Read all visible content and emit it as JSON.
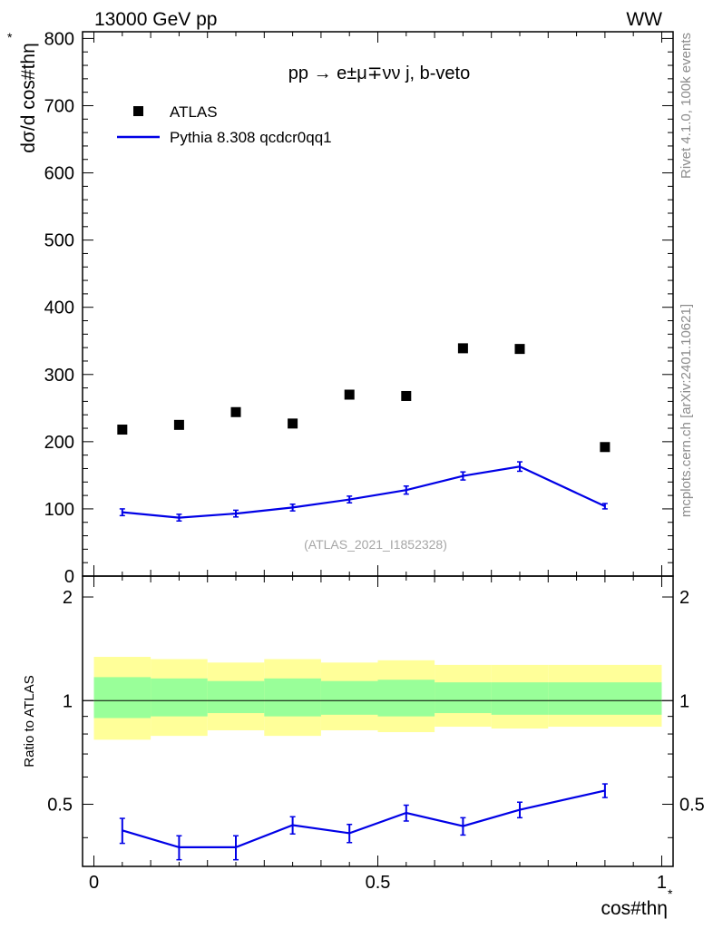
{
  "header": {
    "left": "13000 GeV pp",
    "right": "WW"
  },
  "side_labels": {
    "rivet": "Rivet 4.1.0,  100k events",
    "mcplots": "mcplots.cern.ch [arXiv:2401.10621]"
  },
  "chart_data": [
    {
      "type": "scatter",
      "title": "pp  →  e±μ∓νν j, b-veto",
      "ylabel": "dσ/d cos#thη",
      "ylabel_sup": "*",
      "ylim": [
        0,
        810
      ],
      "yticks": [
        0,
        100,
        200,
        300,
        400,
        500,
        600,
        700,
        800
      ],
      "xlim": [
        -0.02,
        1.02
      ],
      "analysis_label": "(ATLAS_2021_I1852328)",
      "legend": {
        "position": "top-left",
        "entries": [
          {
            "name": "ATLAS",
            "style": "marker",
            "color": "#000000"
          },
          {
            "name": "Pythia 8.308 qcdcr0qq1",
            "style": "line",
            "color": "#0000e6"
          }
        ]
      },
      "series": [
        {
          "name": "ATLAS",
          "x": [
            0.05,
            0.15,
            0.25,
            0.35,
            0.45,
            0.55,
            0.65,
            0.75,
            0.9
          ],
          "values": [
            218,
            225,
            244,
            227,
            270,
            268,
            339,
            338,
            192
          ]
        },
        {
          "name": "Pythia 8.308 qcdcr0qq1",
          "x": [
            0.05,
            0.15,
            0.25,
            0.35,
            0.45,
            0.55,
            0.65,
            0.75,
            0.9
          ],
          "values": [
            95,
            87,
            93,
            102,
            114,
            128,
            149,
            163,
            104
          ],
          "errors": [
            5,
            5,
            5,
            5,
            5,
            6,
            6,
            7,
            4
          ]
        }
      ]
    },
    {
      "type": "line",
      "ylabel": "Ratio to ATLAS",
      "xlabel": "cos#thη",
      "xlabel_sup": "*",
      "xlim": [
        -0.02,
        1.02
      ],
      "ylim": [
        0.33,
        2.3
      ],
      "yscale": "log",
      "xticks": [
        0,
        0.5,
        1
      ],
      "xtick_labels": [
        "0",
        "0.5",
        "1"
      ],
      "yticks": [
        0.5,
        1,
        2
      ],
      "ytick_labels": [
        "0.5",
        "1",
        "2"
      ],
      "bins": [
        0,
        0.1,
        0.2,
        0.3,
        0.4,
        0.5,
        0.6,
        0.7,
        0.8,
        1.0
      ],
      "bands": [
        {
          "name": "total uncertainty",
          "color": "#ffff99",
          "lower": [
            0.77,
            0.79,
            0.82,
            0.79,
            0.82,
            0.81,
            0.84,
            0.83,
            0.84
          ],
          "upper": [
            1.34,
            1.32,
            1.29,
            1.32,
            1.29,
            1.31,
            1.27,
            1.27,
            1.27
          ]
        },
        {
          "name": "statistical uncertainty",
          "color": "#99ff99",
          "lower": [
            0.89,
            0.9,
            0.92,
            0.9,
            0.91,
            0.9,
            0.92,
            0.91,
            0.91
          ],
          "upper": [
            1.17,
            1.16,
            1.14,
            1.16,
            1.14,
            1.15,
            1.13,
            1.13,
            1.13
          ]
        }
      ],
      "series": [
        {
          "name": "Pythia 8.308 qcdcr0qq1 / ATLAS",
          "x": [
            0.05,
            0.15,
            0.25,
            0.35,
            0.45,
            0.55,
            0.65,
            0.75,
            0.9
          ],
          "values": [
            0.42,
            0.375,
            0.375,
            0.435,
            0.412,
            0.472,
            0.432,
            0.482,
            0.548
          ],
          "errors": [
            0.035,
            0.03,
            0.03,
            0.025,
            0.025,
            0.025,
            0.025,
            0.025,
            0.025
          ]
        }
      ]
    }
  ]
}
